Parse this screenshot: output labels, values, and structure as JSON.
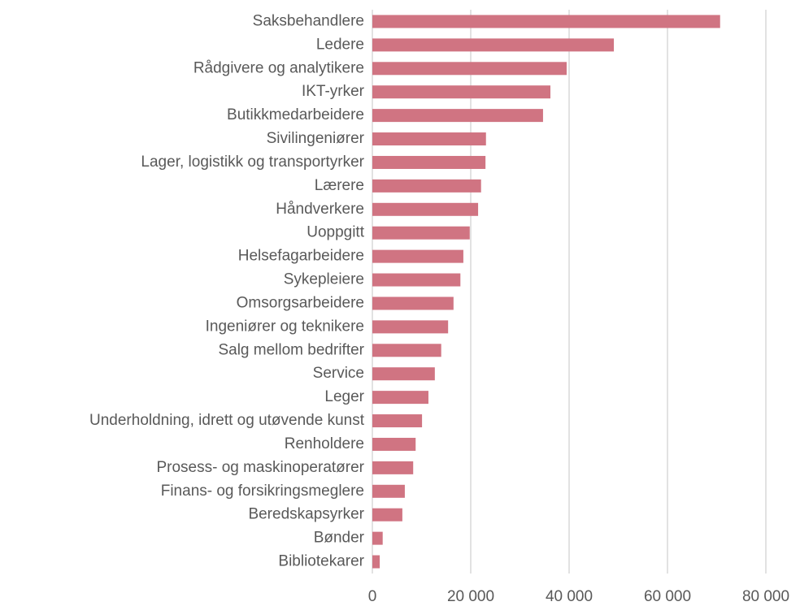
{
  "chart_data": {
    "type": "barh",
    "categories": [
      "Saksbehandlere",
      "Ledere",
      "Rådgivere og analytikere",
      "IKT-yrker",
      "Butikkmedarbeidere",
      "Sivilingeniører",
      "Lager, logistikk og transportyrker",
      "Lærere",
      "Håndverkere",
      "Uoppgitt",
      "Helsefagarbeidere",
      "Sykepleiere",
      "Omsorgsarbeidere",
      "Ingeniører og teknikere",
      "Salg mellom bedrifter",
      "Service",
      "Leger",
      "Underholdning, idrett og utøvende kunst",
      "Renholdere",
      "Prosess- og maskinoperatører",
      "Finans- og forsikringsmeglere",
      "Beredskapsyrker",
      "Bønder",
      "Bibliotekarer"
    ],
    "values": [
      70700,
      49100,
      39500,
      36200,
      34700,
      23100,
      23000,
      22100,
      21500,
      19800,
      18500,
      17900,
      16500,
      15400,
      14000,
      12700,
      11400,
      10100,
      8800,
      8300,
      6600,
      6100,
      2100,
      1500
    ],
    "color": "#d07482",
    "xlim": [
      0,
      80000
    ],
    "xticks": [
      0,
      {
        "value": 20000,
        "label": "20 000"
      },
      {
        "value": 40000,
        "label": "40 000"
      },
      {
        "value": 60000,
        "label": "60 000"
      },
      {
        "value": 80000,
        "label": "80 000"
      }
    ],
    "grid": true
  }
}
